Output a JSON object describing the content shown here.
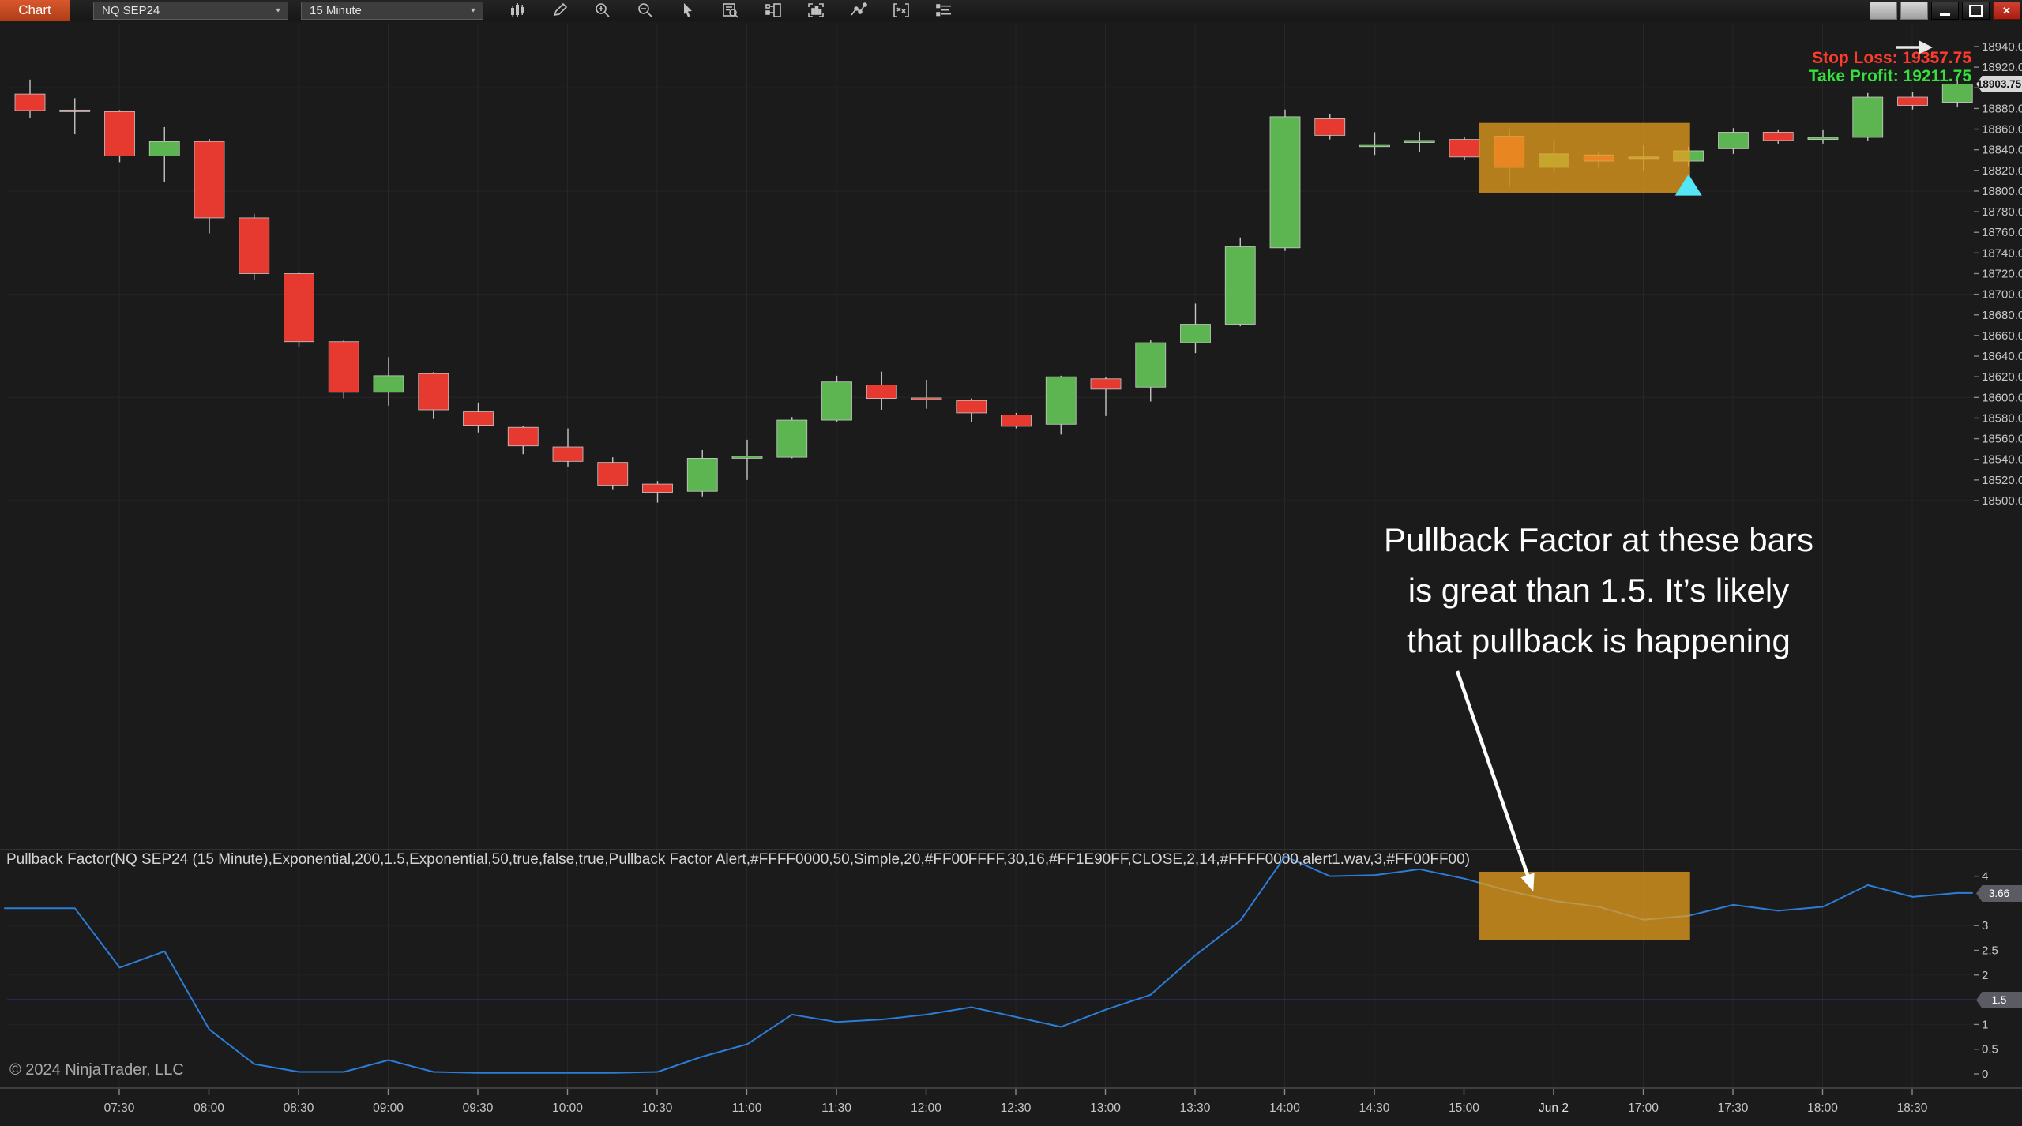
{
  "toolbar": {
    "tab_label": "Chart",
    "instrument": "NQ SEP24",
    "timeframe": "15 Minute",
    "chevron_glyph": "▼",
    "close_glyph": "✕",
    "icons": [
      "candlestick-chart-icon",
      "pencil-icon",
      "zoom-in-icon",
      "zoom-out-icon",
      "cursor-icon",
      "data-box-icon",
      "object-dock-icon",
      "chart-panel-icon",
      "indicator-line-icon",
      "strategy-icon",
      "list-menu-icon"
    ]
  },
  "order_info": {
    "stop_loss_label": "Stop Loss: 19357.75",
    "take_profit_label": "Take Profit: 19211.75",
    "stop_loss": 19357.75,
    "take_profit": 19211.75
  },
  "annotation": {
    "line1": "Pullback Factor at these bars",
    "line2": "is great than 1.5. It’s likely",
    "line3": "that pullback is happening"
  },
  "price_tag": "18903.75",
  "indicator": {
    "label": "Pullback Factor(NQ SEP24 (15 Minute),Exponential,200,1.5,Exponential,50,true,false,true,Pullback Factor Alert,#FFFF0000,50,Simple,20,#FF00FFFF,30,16,#FF1E90FF,CLOSE,2,14,#FFFF0000,alert1.wav,3,#FF00FF00)",
    "current_value": "3.66",
    "level_value": "1.5",
    "axis_labels": [
      {
        "text": "4",
        "value": 4
      },
      {
        "text": "3",
        "value": 3
      },
      {
        "text": "2.5",
        "value": 2.5
      },
      {
        "text": "2",
        "value": 2
      },
      {
        "text": "1",
        "value": 1
      },
      {
        "text": "0.5",
        "value": 0.5
      },
      {
        "text": "0",
        "value": 0
      }
    ]
  },
  "price_axis": {
    "labels": [
      "18940.00",
      "18920.00",
      "18900.00",
      "18880.00",
      "18860.00",
      "18840.00",
      "18820.00",
      "18800.00",
      "18780.00",
      "18760.00",
      "18740.00",
      "18720.00",
      "18700.00",
      "18680.00",
      "18660.00",
      "18640.00",
      "18620.00",
      "18600.00",
      "18580.00",
      "18560.00",
      "18540.00",
      "18520.00",
      "18500.00"
    ],
    "top_value": 18940,
    "step": -20
  },
  "time_axis": {
    "labels": [
      "07:30",
      "08:00",
      "08:30",
      "09:00",
      "09:30",
      "10:00",
      "10:30",
      "11:00",
      "11:30",
      "12:00",
      "12:30",
      "13:00",
      "13:30",
      "14:00",
      "14:30",
      "15:00",
      "Jun 2",
      "17:00",
      "17:30",
      "18:00",
      "18:30"
    ]
  },
  "copyright": "© 2024 NinjaTrader, LLC",
  "chart_data": {
    "type": "candlestick",
    "symbol": "NQ SEP24",
    "interval": "15 Minute",
    "ylim": [
      18500,
      18940
    ],
    "bars": [
      {
        "t": "07:00",
        "o": 18894.0,
        "h": 18908.0,
        "l": 18871.0,
        "c": 18878.0
      },
      {
        "t": "07:15",
        "o": 18878.5,
        "h": 18890.0,
        "l": 18855.0,
        "c": 18877.5
      },
      {
        "t": "07:30",
        "o": 18877.0,
        "h": 18878.5,
        "l": 18828.0,
        "c": 18834.0
      },
      {
        "t": "07:45",
        "o": 18834.0,
        "h": 18862.0,
        "l": 18809.0,
        "c": 18848.0
      },
      {
        "t": "08:00",
        "o": 18848.0,
        "h": 18850.5,
        "l": 18759.0,
        "c": 18774.0
      },
      {
        "t": "08:15",
        "o": 18774.0,
        "h": 18778.0,
        "l": 18714.0,
        "c": 18720.0
      },
      {
        "t": "08:30",
        "o": 18720.0,
        "h": 18721.5,
        "l": 18649.0,
        "c": 18654.0
      },
      {
        "t": "08:45",
        "o": 18654.0,
        "h": 18656.0,
        "l": 18599.0,
        "c": 18605.0
      },
      {
        "t": "09:00",
        "o": 18605.0,
        "h": 18639.0,
        "l": 18592.0,
        "c": 18621.0
      },
      {
        "t": "09:15",
        "o": 18623.0,
        "h": 18624.5,
        "l": 18579.0,
        "c": 18588.0
      },
      {
        "t": "09:30",
        "o": 18586.0,
        "h": 18595.0,
        "l": 18566.0,
        "c": 18573.0
      },
      {
        "t": "09:45",
        "o": 18571.0,
        "h": 18572.5,
        "l": 18545.0,
        "c": 18553.0
      },
      {
        "t": "10:00",
        "o": 18552.0,
        "h": 18570.0,
        "l": 18533.0,
        "c": 18538.0
      },
      {
        "t": "10:15",
        "o": 18537.0,
        "h": 18542.0,
        "l": 18511.0,
        "c": 18515.0
      },
      {
        "t": "10:30",
        "o": 18516.0,
        "h": 18519.0,
        "l": 18498.0,
        "c": 18508.0
      },
      {
        "t": "10:45",
        "o": 18509.0,
        "h": 18549.0,
        "l": 18504.0,
        "c": 18541.0
      },
      {
        "t": "11:00",
        "o": 18541.0,
        "h": 18559.0,
        "l": 18520.0,
        "c": 18543.0
      },
      {
        "t": "11:15",
        "o": 18542.0,
        "h": 18581.0,
        "l": 18541.0,
        "c": 18578.0
      },
      {
        "t": "11:30",
        "o": 18578.0,
        "h": 18621.0,
        "l": 18576.0,
        "c": 18615.0
      },
      {
        "t": "11:45",
        "o": 18612.0,
        "h": 18625.0,
        "l": 18588.0,
        "c": 18599.0
      },
      {
        "t": "12:00",
        "o": 18599.5,
        "h": 18617.0,
        "l": 18589.0,
        "c": 18598.5
      },
      {
        "t": "12:15",
        "o": 18597.0,
        "h": 18599.0,
        "l": 18576.0,
        "c": 18585.0
      },
      {
        "t": "12:30",
        "o": 18583.0,
        "h": 18585.0,
        "l": 18570.0,
        "c": 18572.0
      },
      {
        "t": "12:45",
        "o": 18574.0,
        "h": 18621.0,
        "l": 18564.0,
        "c": 18620.0
      },
      {
        "t": "13:00",
        "o": 18618.0,
        "h": 18620.0,
        "l": 18582.0,
        "c": 18608.0
      },
      {
        "t": "13:15",
        "o": 18610.0,
        "h": 18656.0,
        "l": 18596.0,
        "c": 18653.0
      },
      {
        "t": "13:30",
        "o": 18653.0,
        "h": 18691.0,
        "l": 18643.0,
        "c": 18671.0
      },
      {
        "t": "13:45",
        "o": 18671.0,
        "h": 18755.0,
        "l": 18669.0,
        "c": 18746.0
      },
      {
        "t": "14:00",
        "o": 18745.0,
        "h": 18879.0,
        "l": 18742.0,
        "c": 18872.0
      },
      {
        "t": "14:15",
        "o": 18870.0,
        "h": 18875.0,
        "l": 18850.0,
        "c": 18854.0
      },
      {
        "t": "14:30",
        "o": 18843.0,
        "h": 18857.0,
        "l": 18835.0,
        "c": 18845.0
      },
      {
        "t": "14:45",
        "o": 18847.0,
        "h": 18857.5,
        "l": 18838.0,
        "c": 18849.0
      },
      {
        "t": "15:00",
        "o": 18850.0,
        "h": 18852.0,
        "l": 18830.0,
        "c": 18833.0
      },
      {
        "t": "15:15",
        "o": 18853.0,
        "h": 18860.0,
        "l": 18804.0,
        "c": 18823.0
      },
      {
        "t": "16:30",
        "o": 18823.0,
        "h": 18850.0,
        "l": 18820.0,
        "c": 18836.0
      },
      {
        "t": "16:45",
        "o": 18835.0,
        "h": 18838.0,
        "l": 18822.0,
        "c": 18829.0
      },
      {
        "t": "17:00",
        "o": 18832.5,
        "h": 18845.0,
        "l": 18820.0,
        "c": 18833.0
      },
      {
        "t": "17:15",
        "o": 18829.0,
        "h": 18843.0,
        "l": 18824.0,
        "c": 18839.0
      },
      {
        "t": "17:30",
        "o": 18841.0,
        "h": 18861.0,
        "l": 18836.0,
        "c": 18857.0
      },
      {
        "t": "17:45",
        "o": 18857.0,
        "h": 18859.0,
        "l": 18846.0,
        "c": 18849.0
      },
      {
        "t": "18:00",
        "o": 18850.0,
        "h": 18859.0,
        "l": 18846.0,
        "c": 18852.0
      },
      {
        "t": "18:15",
        "o": 18852.0,
        "h": 18895.0,
        "l": 18849.0,
        "c": 18891.0
      },
      {
        "t": "18:30",
        "o": 18891.0,
        "h": 18896.0,
        "l": 18879.0,
        "c": 18883.0
      },
      {
        "t": "18:45",
        "o": 18886.0,
        "h": 18910.0,
        "l": 18881.0,
        "c": 18903.75
      }
    ],
    "pullback_factor": {
      "name": "Pullback Factor",
      "current": 3.66,
      "threshold": 1.5,
      "axis_range": [
        0,
        4.5
      ],
      "values": [
        3.35,
        3.35,
        2.15,
        2.48,
        0.9,
        0.2,
        0.04,
        0.04,
        0.28,
        0.04,
        0.02,
        0.02,
        0.02,
        0.02,
        0.04,
        0.35,
        0.6,
        1.2,
        1.05,
        1.1,
        1.2,
        1.35,
        1.15,
        0.95,
        1.3,
        1.6,
        2.4,
        3.1,
        4.4,
        4.0,
        4.02,
        4.14,
        3.95,
        3.7,
        3.5,
        3.38,
        3.12,
        3.2,
        3.42,
        3.3,
        3.38,
        3.82,
        3.58,
        3.66
      ]
    },
    "highlight_boxes": [
      {
        "panel": "price",
        "bar_start": 32.66,
        "bar_end": 36.7,
        "top": 18866,
        "bottom": 18798
      },
      {
        "panel": "indicator",
        "bar_start": 32.66,
        "bar_end": 36.7,
        "top": 4.09,
        "bottom": 2.7
      }
    ],
    "marker": {
      "type": "triangle-up",
      "bar": 37,
      "note": "entry signal"
    },
    "grid_prices": [
      18900,
      18800,
      18700,
      18600,
      18500
    ],
    "grid_indicator_values": [
      1,
      2,
      3,
      4
    ]
  },
  "colors": {
    "up": "#5cb551",
    "down": "#e6392f",
    "wick": "#c4c4c4",
    "candle_border": "#c9c9c9",
    "pullback_line": "#2b7dd8",
    "level_line": "#2b2b6e",
    "highlight_box": "rgba(232,160,31,0.75)",
    "marker": "#55e6f6",
    "stop_loss": "#ff3b2c",
    "take_profit": "#35e03c",
    "grid": "#262626",
    "axis_text": "#c6c6c6",
    "separator": "#4a4a4a",
    "annotation_arrow": "#ffffff"
  }
}
